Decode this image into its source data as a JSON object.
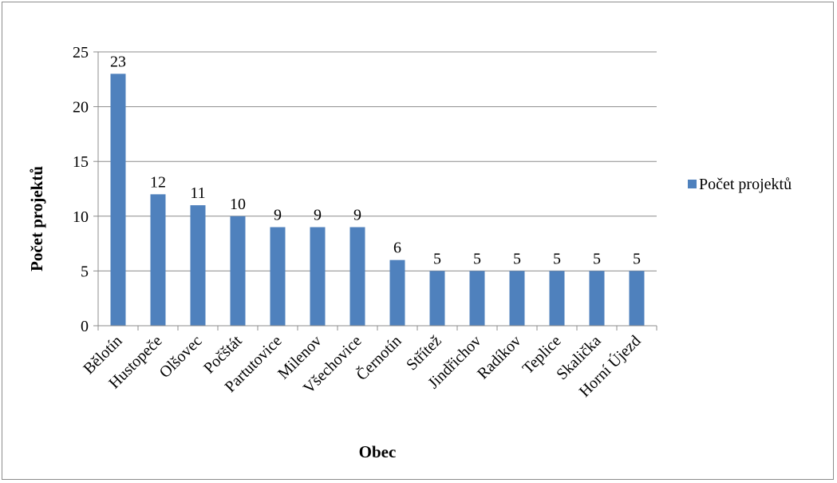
{
  "chart_data": {
    "type": "bar",
    "title": "",
    "xlabel": "Obec",
    "ylabel": "Počet projektů",
    "ylim": [
      0,
      25
    ],
    "yticks": [
      0,
      5,
      10,
      15,
      20,
      25
    ],
    "grid": true,
    "legend_position": "right",
    "categories": [
      "Bělotín",
      "Hustopeče",
      "Olšovec",
      "Počštát",
      "Partutovice",
      "Milenov",
      "Všechovice",
      "Černotín",
      "Střítež",
      "Jindřichov",
      "Radíkov",
      "Teplice",
      "Skalička",
      "Horní Újezd"
    ],
    "series": [
      {
        "name": "Počet projektů",
        "color": "#4f81bd",
        "values": [
          23,
          12,
          11,
          10,
          9,
          9,
          9,
          6,
          5,
          5,
          5,
          5,
          5,
          5
        ]
      }
    ]
  }
}
